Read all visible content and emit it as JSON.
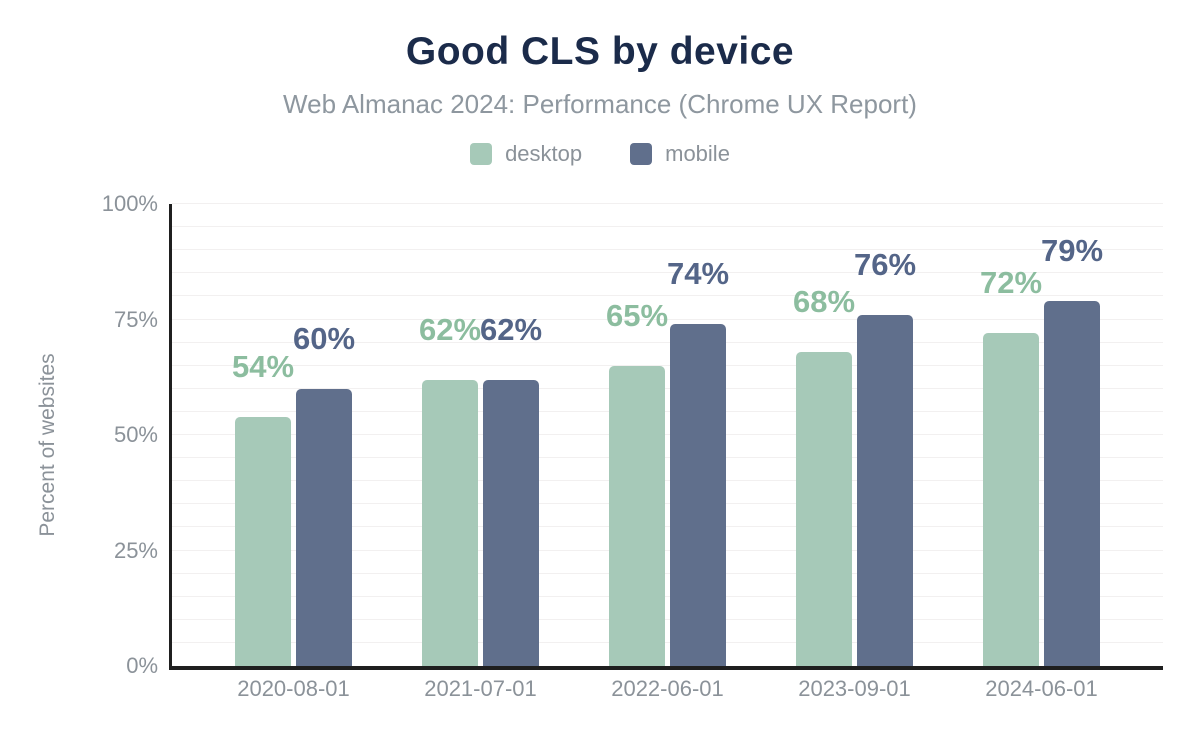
{
  "chart_data": {
    "type": "bar",
    "title": "Good CLS by device",
    "subtitle": "Web Almanac 2024: Performance (Chrome UX Report)",
    "categories": [
      "2020-08-01",
      "2021-07-01",
      "2022-06-01",
      "2023-09-01",
      "2024-06-01"
    ],
    "series": [
      {
        "name": "desktop",
        "values": [
          54,
          62,
          65,
          68,
          72
        ],
        "color": "#a6c9b8",
        "label_color": "#8cbd9f"
      },
      {
        "name": "mobile",
        "values": [
          60,
          62,
          74,
          76,
          79
        ],
        "color": "#606f8c",
        "label_color": "#546588"
      }
    ],
    "value_label_suffix": "%",
    "xlabel": "",
    "ylabel": "Percent of websites",
    "ylim": [
      0,
      100
    ],
    "y_ticks": [
      {
        "label": "0%",
        "value": 0
      },
      {
        "label": "25%",
        "value": 25
      },
      {
        "label": "50%",
        "value": 50
      },
      {
        "label": "75%",
        "value": 75
      },
      {
        "label": "100%",
        "value": 100
      }
    ],
    "grid": {
      "horizontal": true,
      "minor_step_percent": 5,
      "color": "#f2f0f0"
    },
    "legend_position": "top"
  },
  "colors": {
    "background": "#ffffff",
    "title": "#1b2b4a",
    "subtitle": "#8e979f",
    "axis_text": "#8b9299",
    "axis_line": "#1f1f1f"
  }
}
